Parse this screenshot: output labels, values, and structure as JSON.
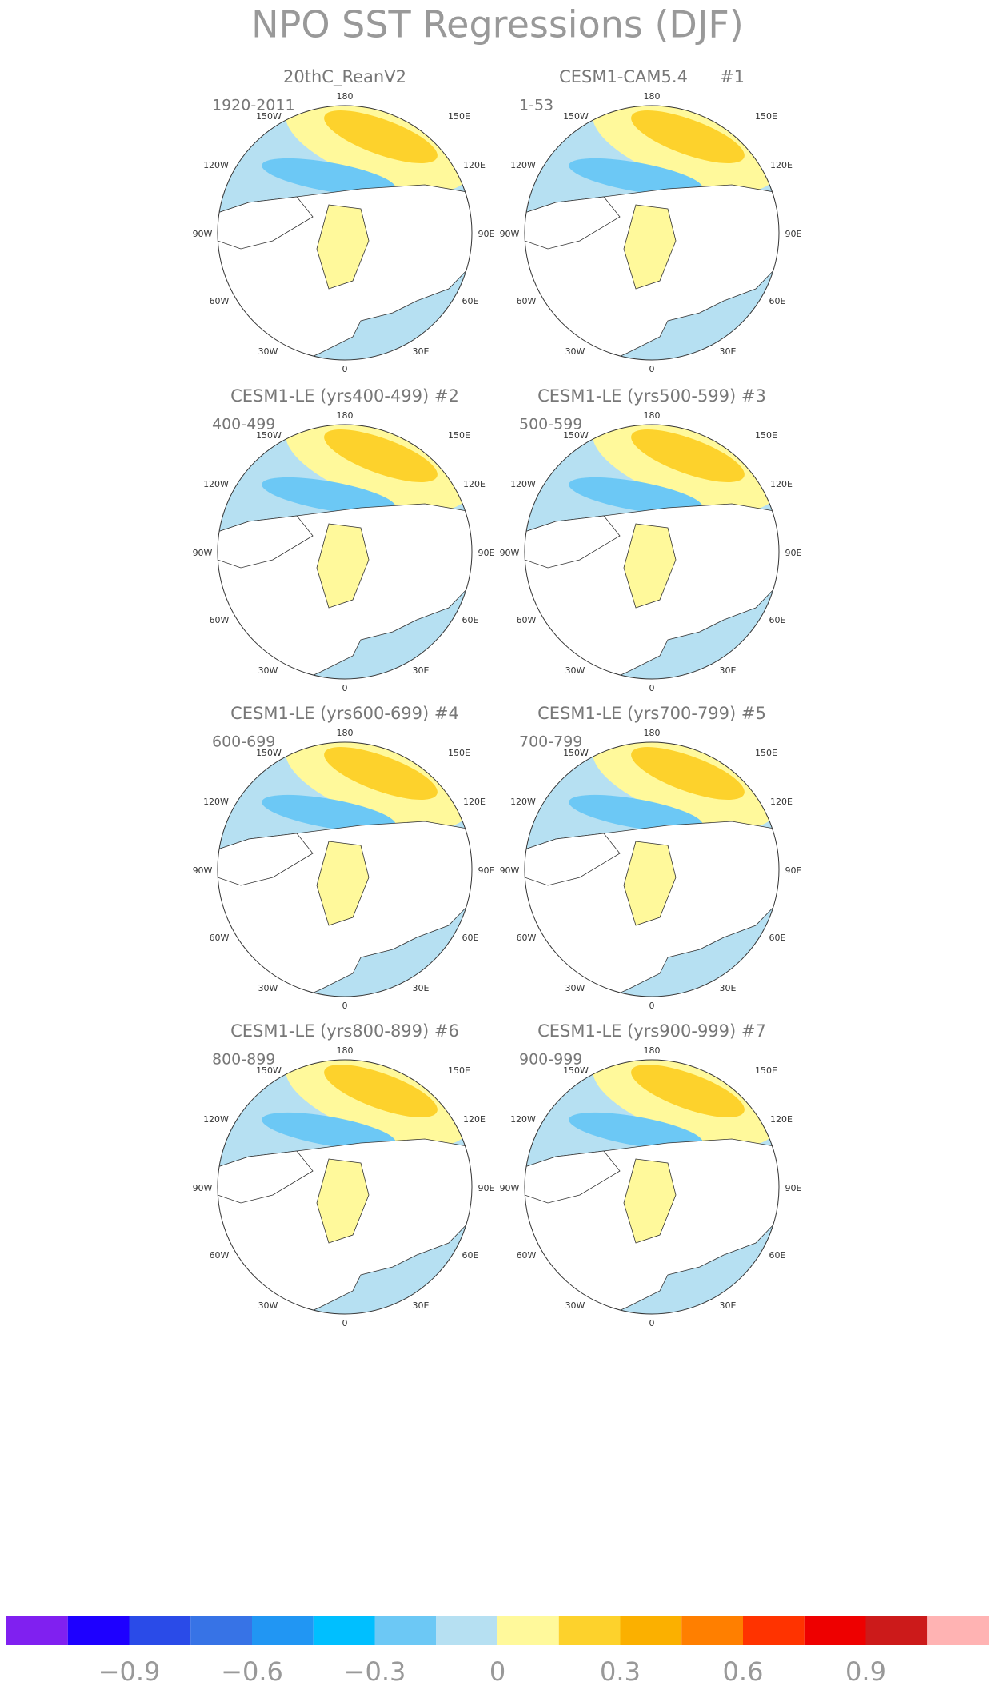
{
  "title": "NPO SST Regressions (DJF)",
  "panels": [
    {
      "title": "20thC_ReanV2",
      "period": "1920-2011"
    },
    {
      "title": "CESM1-CAM5.4      #1",
      "period": "1-53"
    },
    {
      "title": "CESM1-LE (yrs400-499) #2",
      "period": "400-499"
    },
    {
      "title": "CESM1-LE (yrs500-599) #3",
      "period": "500-599"
    },
    {
      "title": "CESM1-LE (yrs600-699) #4",
      "period": "600-699"
    },
    {
      "title": "CESM1-LE (yrs700-799) #5",
      "period": "700-799"
    },
    {
      "title": "CESM1-LE (yrs800-899) #6",
      "period": "800-899"
    },
    {
      "title": "CESM1-LE (yrs900-999) #7",
      "period": "900-999"
    }
  ],
  "lon_labels": [
    "180",
    "150E",
    "120E",
    "90E",
    "60E",
    "30E",
    "0",
    "30W",
    "60W",
    "90W",
    "120W",
    "150W"
  ],
  "colorbar": {
    "colors": [
      "#8020f0",
      "#1e00ff",
      "#2a4be8",
      "#3773e6",
      "#2196f3",
      "#00bfff",
      "#6cc8f5",
      "#b6e0f2",
      "#fff99b",
      "#fdd22c",
      "#fbb000",
      "#ff7f00",
      "#ff3300",
      "#ee0000",
      "#cc1a1a",
      "#ffb3b3"
    ],
    "lim": [
      -1.2,
      1.2
    ],
    "ticks": [
      {
        "value": -0.9,
        "label": "−0.9"
      },
      {
        "value": -0.6,
        "label": "−0.6"
      },
      {
        "value": -0.3,
        "label": "−0.3"
      },
      0,
      0.3,
      0.6,
      0.9
    ]
  }
}
